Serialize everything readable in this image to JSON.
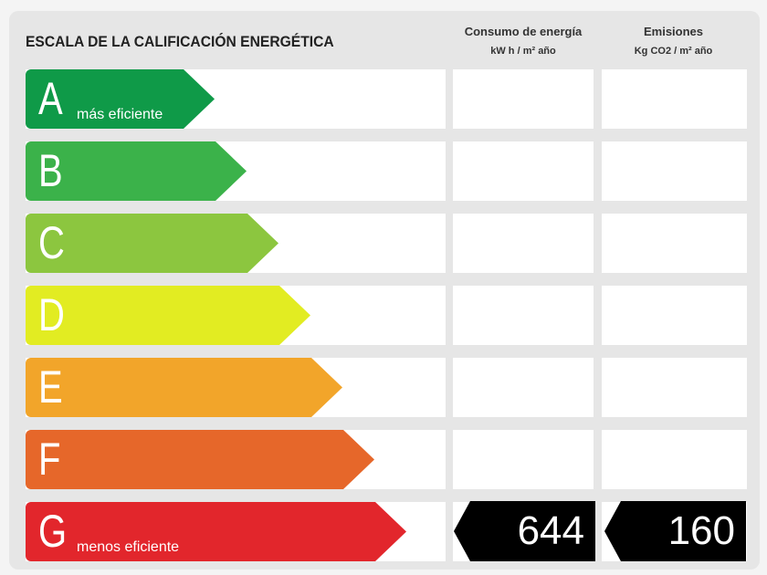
{
  "title": "ESCALA DE LA CALIFICACIÓN ENERGÉTICA",
  "columns": [
    {
      "label": "Consumo de energía",
      "unit": "kW h / m² año"
    },
    {
      "label": "Emisiones",
      "unit": "Kg CO2 / m²  año"
    }
  ],
  "ratings": [
    {
      "letter": "A",
      "caption": "más eficiente",
      "color": "#0f9a48"
    },
    {
      "letter": "B",
      "caption": "",
      "color": "#3bb24a"
    },
    {
      "letter": "C",
      "caption": "",
      "color": "#8cc63f"
    },
    {
      "letter": "D",
      "caption": "",
      "color": "#e2ec22"
    },
    {
      "letter": "E",
      "caption": "",
      "color": "#f2a52a"
    },
    {
      "letter": "F",
      "caption": "",
      "color": "#e6672a"
    },
    {
      "letter": "G",
      "caption": "menos eficiente",
      "color": "#e2262c"
    }
  ],
  "result": {
    "rating": "G",
    "consumption": "644",
    "emissions": "160"
  }
}
